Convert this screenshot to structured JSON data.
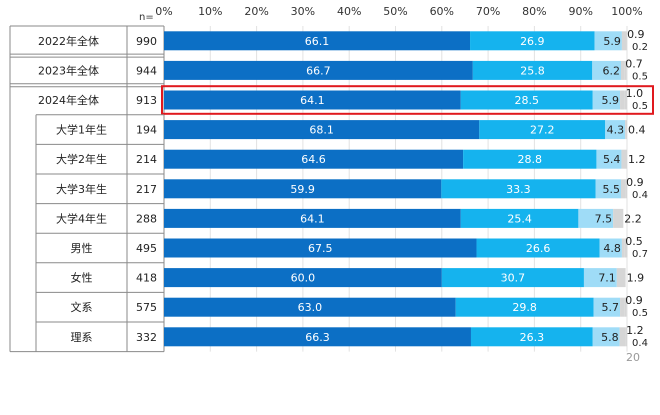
{
  "chart_data": {
    "type": "bar",
    "stacked": true,
    "orientation": "horizontal",
    "n_label": "n=",
    "x_ticks": [
      "0%",
      "10%",
      "20%",
      "30%",
      "40%",
      "50%",
      "60%",
      "70%",
      "80%",
      "90%",
      "100%"
    ],
    "xlim": [
      0,
      100
    ],
    "grid": true,
    "page_number": "20",
    "series_colors": [
      "#0c6fc5",
      "#15b3ee",
      "#9fdcf7",
      "#d6d6d6"
    ],
    "rows": [
      {
        "label": "2022年全体",
        "n": "990",
        "group": "year",
        "values": [
          66.1,
          26.9,
          5.9,
          0.9,
          0.2
        ],
        "labels": [
          "66.1",
          "26.9",
          "5.9",
          "0.9",
          "0.2"
        ]
      },
      {
        "label": "2023年全体",
        "n": "944",
        "group": "year",
        "values": [
          66.7,
          25.8,
          6.2,
          0.7,
          0.5
        ],
        "labels": [
          "66.7",
          "25.8",
          "6.2",
          "0.7",
          "0.5"
        ]
      },
      {
        "label": "2024年全体",
        "n": "913",
        "group": "year",
        "highlight": true,
        "values": [
          64.1,
          28.5,
          5.9,
          1.0,
          0.5
        ],
        "labels": [
          "64.1",
          "28.5",
          "5.9",
          "1.0",
          "0.5"
        ]
      },
      {
        "label": "大学1年生",
        "n": "194",
        "group": "sub",
        "values": [
          68.1,
          27.2,
          4.3,
          0.4,
          0
        ],
        "labels": [
          "68.1",
          "27.2",
          "4.3",
          "0.4",
          ""
        ]
      },
      {
        "label": "大学2年生",
        "n": "214",
        "group": "sub",
        "values": [
          64.6,
          28.8,
          5.4,
          1.2,
          0
        ],
        "labels": [
          "64.6",
          "28.8",
          "5.4",
          "1.2",
          ""
        ]
      },
      {
        "label": "大学3年生",
        "n": "217",
        "group": "sub",
        "values": [
          59.9,
          33.3,
          5.5,
          0.9,
          0.4
        ],
        "labels": [
          "59.9",
          "33.3",
          "5.5",
          "0.9",
          "0.4"
        ]
      },
      {
        "label": "大学4年生",
        "n": "288",
        "group": "sub",
        "values": [
          64.1,
          25.4,
          7.5,
          2.2,
          0
        ],
        "labels": [
          "64.1",
          "25.4",
          "7.5",
          "2.2",
          ""
        ]
      },
      {
        "label": "男性",
        "n": "495",
        "group": "sub",
        "values": [
          67.5,
          26.6,
          4.8,
          0.5,
          0.7
        ],
        "labels": [
          "67.5",
          "26.6",
          "4.8",
          "0.5",
          "0.7"
        ]
      },
      {
        "label": "女性",
        "n": "418",
        "group": "sub",
        "values": [
          60.0,
          30.7,
          7.1,
          1.9,
          0
        ],
        "labels": [
          "60.0",
          "30.7",
          "7.1",
          "1.9",
          ""
        ]
      },
      {
        "label": "文系",
        "n": "575",
        "group": "sub",
        "values": [
          63.0,
          29.8,
          5.7,
          0.9,
          0.5
        ],
        "labels": [
          "63.0",
          "29.8",
          "5.7",
          "0.9",
          "0.5"
        ]
      },
      {
        "label": "理系",
        "n": "332",
        "group": "sub",
        "values": [
          66.3,
          26.3,
          5.8,
          1.2,
          0.4
        ],
        "labels": [
          "66.3",
          "26.3",
          "5.8",
          "1.2",
          "0.4"
        ]
      }
    ]
  }
}
